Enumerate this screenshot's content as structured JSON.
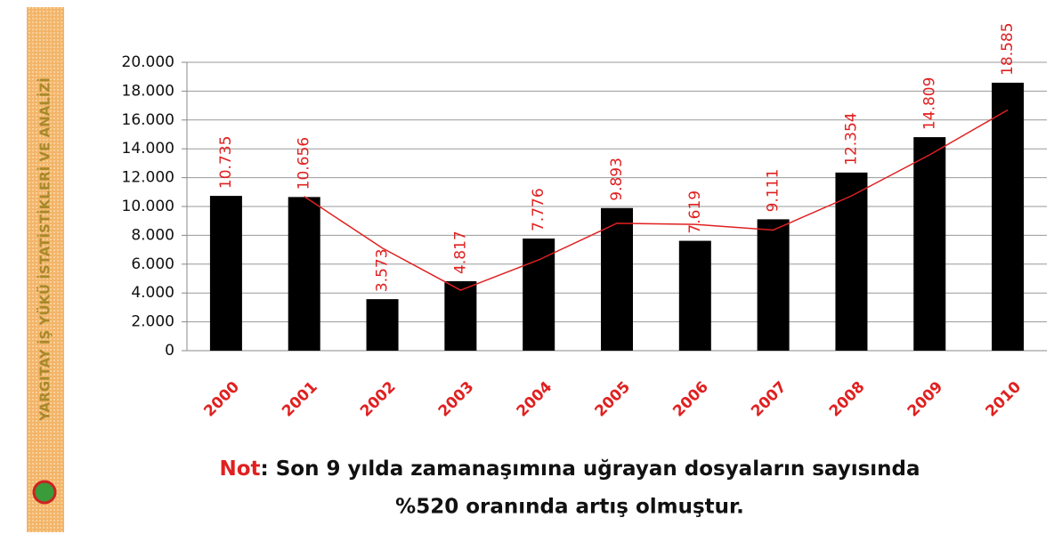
{
  "chart_data": {
    "type": "bar",
    "sidebar_text": "YARGITAY İŞ YÜKÜ İSTATİSTİKLERİ VE ANALİZİ",
    "categories": [
      "2000",
      "2001",
      "2002",
      "2003",
      "2004",
      "2005",
      "2006",
      "2007",
      "2008",
      "2009",
      "2010"
    ],
    "values": [
      10735,
      10656,
      3573,
      4817,
      7776,
      9893,
      7619,
      9111,
      12354,
      14809,
      18585
    ],
    "value_labels": [
      "10.735",
      "10.656",
      "3.573",
      "4.817",
      "7.776",
      "9.893",
      "7.619",
      "9.111",
      "12.354",
      "14.809",
      "18.585"
    ],
    "color": "#000000",
    "label_color": "#e02020",
    "trendline": {
      "type": "moving_average",
      "period": 2,
      "color": "#e02020"
    },
    "ylim": [
      0,
      20000
    ],
    "yticks": [
      0,
      {
        "value": 2000,
        "label": "2.000"
      },
      {
        "value": 4000,
        "label": "4.000"
      },
      {
        "value": 6000,
        "label": "6.000"
      },
      {
        "value": 8000,
        "label": "8.000"
      },
      {
        "value": 10000,
        "label": "10.000"
      },
      {
        "value": 12000,
        "label": "12.000"
      },
      {
        "value": 14000,
        "label": "14.000"
      },
      {
        "value": 16000,
        "label": "16.000"
      },
      {
        "value": 18000,
        "label": "18.000"
      },
      {
        "value": 20000,
        "label": "20.000"
      }
    ],
    "grid": true,
    "note": {
      "label": "Not",
      "lines": [
        ": Son 9 yılda zamanaşımına uğrayan dosyaların sayısında",
        "%520 oranında artış olmuştur."
      ]
    }
  }
}
